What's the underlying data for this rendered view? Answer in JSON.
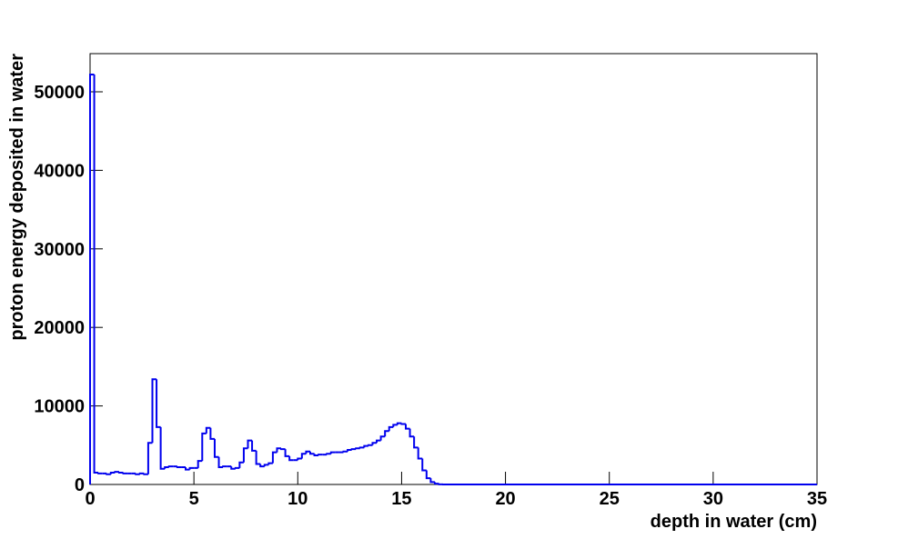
{
  "chart_data": {
    "type": "histogram",
    "xlabel": "depth in water (cm)",
    "ylabel": "proton energy deposited in water",
    "color": "#0000ee",
    "bins": [
      0,
      0.2,
      0.4,
      0.6,
      0.8,
      1,
      1.2,
      1.4,
      1.6,
      1.8,
      2,
      2.2,
      2.4,
      2.6,
      2.8,
      3,
      3.2,
      3.4,
      3.6,
      3.8,
      4,
      4.2,
      4.4,
      4.6,
      4.8,
      5,
      5.2,
      5.4,
      5.6,
      5.8,
      6,
      6.2,
      6.4,
      6.6,
      6.8,
      7,
      7.2,
      7.4,
      7.6,
      7.8,
      8,
      8.2,
      8.4,
      8.6,
      8.8,
      9,
      9.2,
      9.4,
      9.6,
      9.8,
      10,
      10.2,
      10.4,
      10.6,
      10.8,
      11,
      11.2,
      11.4,
      11.6,
      11.8,
      12,
      12.2,
      12.4,
      12.6,
      12.8,
      13,
      13.2,
      13.4,
      13.6,
      13.8,
      14,
      14.2,
      14.4,
      14.6,
      14.8,
      15,
      15.2,
      15.4,
      15.6,
      15.8,
      16,
      16.2,
      16.4,
      16.6,
      16.8,
      17,
      35
    ],
    "values": [
      52200,
      1500,
      1400,
      1400,
      1300,
      1500,
      1600,
      1500,
      1400,
      1400,
      1400,
      1300,
      1400,
      1300,
      5300,
      13400,
      7300,
      2000,
      2200,
      2300,
      2300,
      2200,
      2200,
      1900,
      2100,
      2100,
      3000,
      6500,
      7200,
      5800,
      3500,
      2200,
      2300,
      2300,
      2000,
      2100,
      2800,
      4600,
      5600,
      4300,
      2600,
      2300,
      2500,
      2700,
      4100,
      4600,
      4500,
      3600,
      3100,
      3100,
      3300,
      3900,
      4200,
      3900,
      3700,
      3800,
      3800,
      3900,
      4100,
      4100,
      4100,
      4200,
      4400,
      4500,
      4600,
      4700,
      4900,
      5000,
      5300,
      5600,
      6100,
      6800,
      7300,
      7600,
      7800,
      7700,
      7100,
      6100,
      4700,
      3300,
      1800,
      800,
      300,
      100,
      20,
      0
    ],
    "xlim": [
      0,
      35
    ],
    "xticks": [
      0,
      5,
      10,
      15,
      20,
      25,
      30,
      35
    ],
    "ylim": [
      0,
      54860
    ],
    "yticks": [
      0,
      10000,
      20000,
      30000,
      40000,
      50000
    ]
  }
}
